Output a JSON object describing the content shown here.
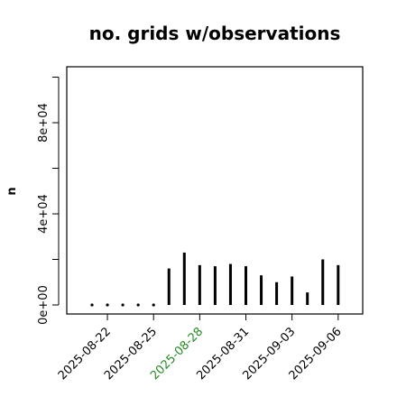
{
  "chart_data": {
    "type": "bar",
    "title": "no. grids w/observations",
    "ylabel": "n",
    "xlabel": "",
    "ylim": [
      -2000,
      102000
    ],
    "y_ticks": [
      0,
      40000,
      80000
    ],
    "y_tick_labels": [
      "0e+00",
      "4e+04",
      "8e+04"
    ],
    "x_tick_labels": [
      {
        "label": "2025-08-22",
        "color": "#000000"
      },
      {
        "label": "2025-08-25",
        "color": "#000000"
      },
      {
        "label": "2025-08-28",
        "color": "#228b22"
      },
      {
        "label": "2025-08-31",
        "color": "#000000"
      },
      {
        "label": "2025-09-03",
        "color": "#000000"
      },
      {
        "label": "2025-09-06",
        "color": "#000000"
      }
    ],
    "grid": false,
    "categories": [
      "2025-08-21",
      "2025-08-22",
      "2025-08-23",
      "2025-08-24",
      "2025-08-25",
      "2025-08-26",
      "2025-08-27",
      "2025-08-28",
      "2025-08-29",
      "2025-08-30",
      "2025-08-31",
      "2025-09-01",
      "2025-09-02",
      "2025-09-03",
      "2025-09-04",
      "2025-09-05",
      "2025-09-06"
    ],
    "values": [
      0,
      0,
      0,
      0,
      0,
      16000,
      23000,
      17500,
      17000,
      18000,
      17000,
      13000,
      10000,
      12500,
      5500,
      20000,
      17500
    ],
    "bar_color": "#000000"
  }
}
